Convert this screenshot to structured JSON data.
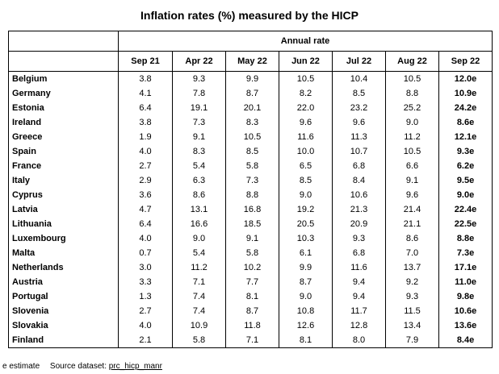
{
  "title": "Inflation rates (%) measured by the HICP",
  "group_header": "Annual rate",
  "columns": [
    "Sep 21",
    "Apr 22",
    "May 22",
    "Jun 22",
    "Jul 22",
    "Aug 22",
    "Sep 22"
  ],
  "rows": [
    {
      "country": "Belgium",
      "values": [
        "3.8",
        "9.3",
        "9.9",
        "10.5",
        "10.4",
        "10.5",
        "12.0e"
      ]
    },
    {
      "country": "Germany",
      "values": [
        "4.1",
        "7.8",
        "8.7",
        "8.2",
        "8.5",
        "8.8",
        "10.9e"
      ]
    },
    {
      "country": "Estonia",
      "values": [
        "6.4",
        "19.1",
        "20.1",
        "22.0",
        "23.2",
        "25.2",
        "24.2e"
      ]
    },
    {
      "country": "Ireland",
      "values": [
        "3.8",
        "7.3",
        "8.3",
        "9.6",
        "9.6",
        "9.0",
        "8.6e"
      ]
    },
    {
      "country": "Greece",
      "values": [
        "1.9",
        "9.1",
        "10.5",
        "11.6",
        "11.3",
        "11.2",
        "12.1e"
      ]
    },
    {
      "country": "Spain",
      "values": [
        "4.0",
        "8.3",
        "8.5",
        "10.0",
        "10.7",
        "10.5",
        "9.3e"
      ]
    },
    {
      "country": "France",
      "values": [
        "2.7",
        "5.4",
        "5.8",
        "6.5",
        "6.8",
        "6.6",
        "6.2e"
      ]
    },
    {
      "country": "Italy",
      "values": [
        "2.9",
        "6.3",
        "7.3",
        "8.5",
        "8.4",
        "9.1",
        "9.5e"
      ]
    },
    {
      "country": "Cyprus",
      "values": [
        "3.6",
        "8.6",
        "8.8",
        "9.0",
        "10.6",
        "9.6",
        "9.0e"
      ]
    },
    {
      "country": "Latvia",
      "values": [
        "4.7",
        "13.1",
        "16.8",
        "19.2",
        "21.3",
        "21.4",
        "22.4e"
      ]
    },
    {
      "country": "Lithuania",
      "values": [
        "6.4",
        "16.6",
        "18.5",
        "20.5",
        "20.9",
        "21.1",
        "22.5e"
      ]
    },
    {
      "country": "Luxembourg",
      "values": [
        "4.0",
        "9.0",
        "9.1",
        "10.3",
        "9.3",
        "8.6",
        "8.8e"
      ]
    },
    {
      "country": "Malta",
      "values": [
        "0.7",
        "5.4",
        "5.8",
        "6.1",
        "6.8",
        "7.0",
        "7.3e"
      ]
    },
    {
      "country": "Netherlands",
      "values": [
        "3.0",
        "11.2",
        "10.2",
        "9.9",
        "11.6",
        "13.7",
        "17.1e"
      ]
    },
    {
      "country": "Austria",
      "values": [
        "3.3",
        "7.1",
        "7.7",
        "8.7",
        "9.4",
        "9.2",
        "11.0e"
      ]
    },
    {
      "country": "Portugal",
      "values": [
        "1.3",
        "7.4",
        "8.1",
        "9.0",
        "9.4",
        "9.3",
        "9.8e"
      ]
    },
    {
      "country": "Slovenia",
      "values": [
        "2.7",
        "7.4",
        "8.7",
        "10.8",
        "11.7",
        "11.5",
        "10.6e"
      ]
    },
    {
      "country": "Slovakia",
      "values": [
        "4.0",
        "10.9",
        "11.8",
        "12.6",
        "12.8",
        "13.4",
        "13.6e"
      ]
    },
    {
      "country": "Finland",
      "values": [
        "2.1",
        "5.8",
        "7.1",
        "8.1",
        "8.0",
        "7.9",
        "8.4e"
      ]
    }
  ],
  "footnote": {
    "estimate": "e estimate",
    "source_label": "Source dataset:",
    "dataset": "prc_hicp_manr"
  }
}
